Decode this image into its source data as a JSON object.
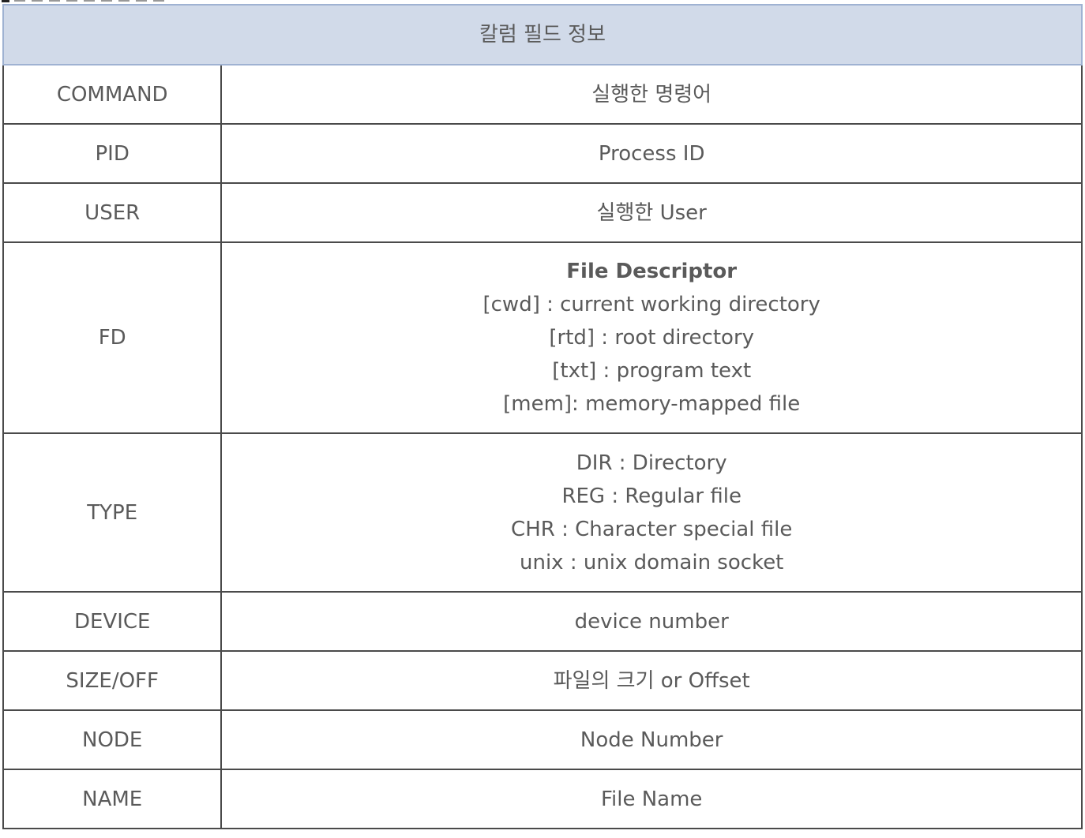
{
  "header": {
    "title": "칼럼 필드 정보"
  },
  "rows": [
    {
      "key": "COMMAND",
      "value": "실행한 명령어"
    },
    {
      "key": "PID",
      "value": "Process ID"
    },
    {
      "key": "USER",
      "value": "실행한 User"
    },
    {
      "key": "FD",
      "title": "File Descriptor",
      "lines": [
        "[cwd] : current working directory",
        "[rtd]   : root directory",
        "[txt]    : program text",
        "[mem]: memory-mapped file"
      ]
    },
    {
      "key": "TYPE",
      "lines": [
        "DIR  : Directory",
        "REG : Regular file",
        "CHR : Character special file",
        "unix : unix domain socket"
      ]
    },
    {
      "key": "DEVICE",
      "value": "device number"
    },
    {
      "key": "SIZE/OFF",
      "value": "파일의 크기 or Offset"
    },
    {
      "key": "NODE",
      "value": "Node Number"
    },
    {
      "key": "NAME",
      "value": "File Name"
    }
  ]
}
